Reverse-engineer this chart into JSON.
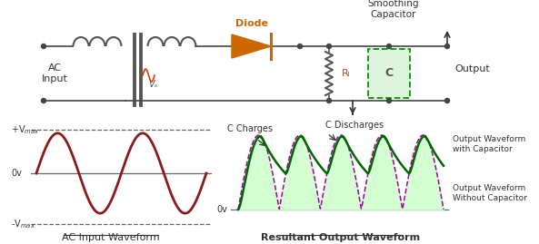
{
  "bg_color": "#ffffff",
  "fig_width": 5.93,
  "fig_height": 2.69,
  "dpi": 100,
  "circuit": {
    "diode_label": "Diode",
    "diode_color": "#cc6600",
    "smoothing_label": "Smoothing\nCapacitor",
    "RL_label": "Rₗ",
    "C_label": "C",
    "output_label": "Output",
    "AC_label": "AC\nInput",
    "Vs_label": "Vₛ"
  },
  "waveform_left": {
    "title": "AC Input Waveform",
    "color": "#8b1a1a",
    "vmax_label": "+Vₘₐₓ",
    "vmin_label": "-Vₘₐₓ",
    "zero_label": "0v"
  },
  "waveform_right": {
    "title": "Resultant Output Waveform",
    "c_charges_label": "C Charges",
    "c_discharges_label": "C Discharges",
    "cap_waveform_label": "Output Waveform\nwith Capacitor",
    "no_cap_label": "Output Waveform\nWithout Capacitor",
    "fill_color": "#ccffcc",
    "cap_color": "#006600",
    "no_cap_color": "#aa00aa",
    "zero_label": "0v"
  }
}
